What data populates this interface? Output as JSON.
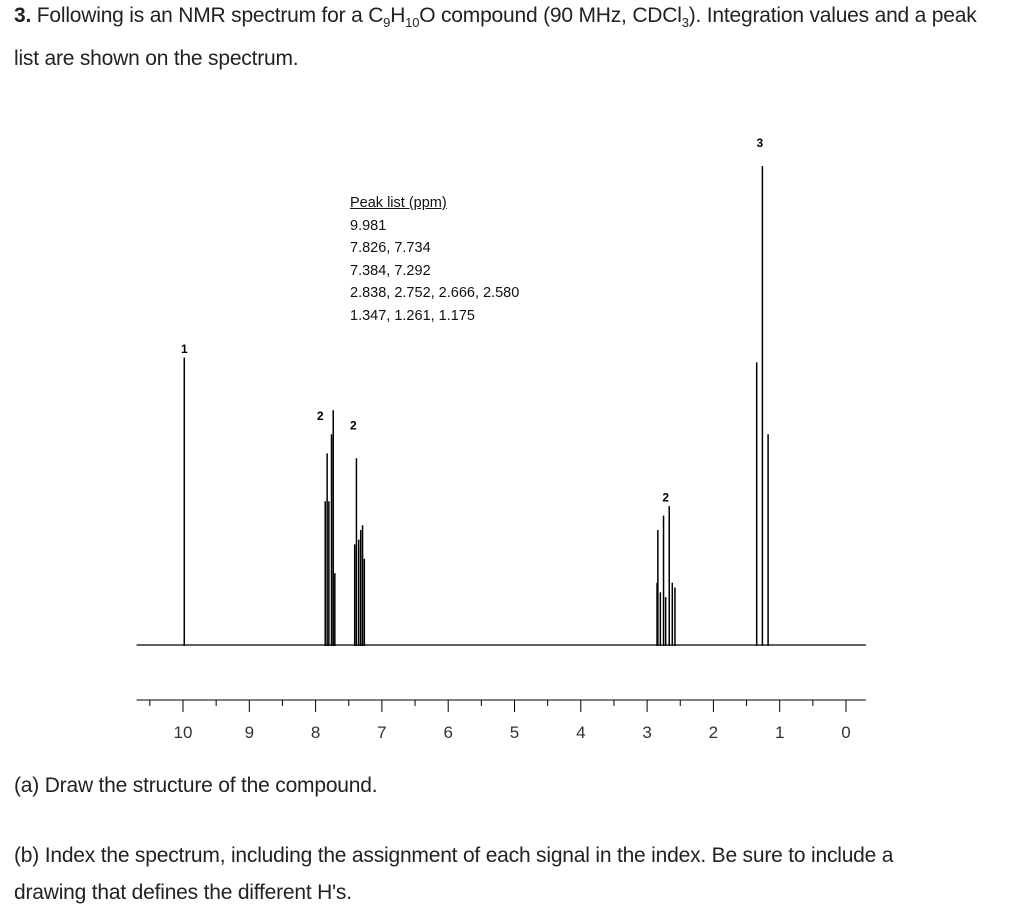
{
  "question": {
    "number": "3.",
    "text_before_formula": " Following is an NMR spectrum for a C",
    "formula_sub1": "9",
    "formula_mid": "H",
    "formula_sub2": "10",
    "formula_end": "O compound (90 MHz, CDCl",
    "formula_sub3": "3",
    "text_after": ").  Integration values and a peak",
    "line2": "list are shown on the spectrum."
  },
  "peak_list": {
    "title": "Peak list (ppm)",
    "rows": [
      "9.981",
      "7.826, 7.734",
      "7.384, 7.292",
      "2.838, 2.752, 2.666, 2.580",
      "1.347, 1.261, 1.175"
    ]
  },
  "chart_data": {
    "type": "line",
    "title": "",
    "xlabel": "",
    "ylabel": "",
    "xlim": [
      10.5,
      -0.3
    ],
    "x_reversed": true,
    "x_ticks": [
      10,
      9,
      8,
      7,
      6,
      5,
      4,
      3,
      2,
      1,
      0
    ],
    "series": [
      {
        "peaks": [
          {
            "ppm": 9.981,
            "height": 0.6
          },
          {
            "ppm": 7.855,
            "height": 0.3
          },
          {
            "ppm": 7.826,
            "height": 0.4
          },
          {
            "ppm": 7.8,
            "height": 0.3
          },
          {
            "ppm": 7.76,
            "height": 0.44
          },
          {
            "ppm": 7.734,
            "height": 0.49
          },
          {
            "ppm": 7.71,
            "height": 0.15
          },
          {
            "ppm": 7.41,
            "height": 0.21
          },
          {
            "ppm": 7.384,
            "height": 0.39
          },
          {
            "ppm": 7.35,
            "height": 0.22
          },
          {
            "ppm": 7.32,
            "height": 0.24
          },
          {
            "ppm": 7.292,
            "height": 0.25
          },
          {
            "ppm": 7.265,
            "height": 0.18
          },
          {
            "ppm": 2.85,
            "height": 0.13
          },
          {
            "ppm": 2.838,
            "height": 0.24
          },
          {
            "ppm": 2.8,
            "height": 0.11
          },
          {
            "ppm": 2.752,
            "height": 0.27
          },
          {
            "ppm": 2.72,
            "height": 0.1
          },
          {
            "ppm": 2.666,
            "height": 0.29
          },
          {
            "ppm": 2.62,
            "height": 0.13
          },
          {
            "ppm": 2.58,
            "height": 0.12
          },
          {
            "ppm": 1.347,
            "height": 0.59
          },
          {
            "ppm": 1.261,
            "height": 1.0
          },
          {
            "ppm": 1.175,
            "height": 0.44
          }
        ]
      }
    ],
    "integrations": [
      {
        "label": "1",
        "ppm": 9.98,
        "height": 0.61
      },
      {
        "label": "2",
        "ppm": 7.93,
        "height": 0.47
      },
      {
        "label": "2",
        "ppm": 7.43,
        "height": 0.45
      },
      {
        "label": "2",
        "ppm": 2.72,
        "height": 0.3
      },
      {
        "label": "3",
        "ppm": 1.3,
        "height": 1.04
      }
    ],
    "grid": false
  },
  "parts": {
    "a": "(a) Draw the structure of the compound.",
    "b_line1": "(b) Index the spectrum, including the assignment of each signal in the index.  Be sure to include a",
    "b_line2": "drawing that defines the different H's."
  }
}
